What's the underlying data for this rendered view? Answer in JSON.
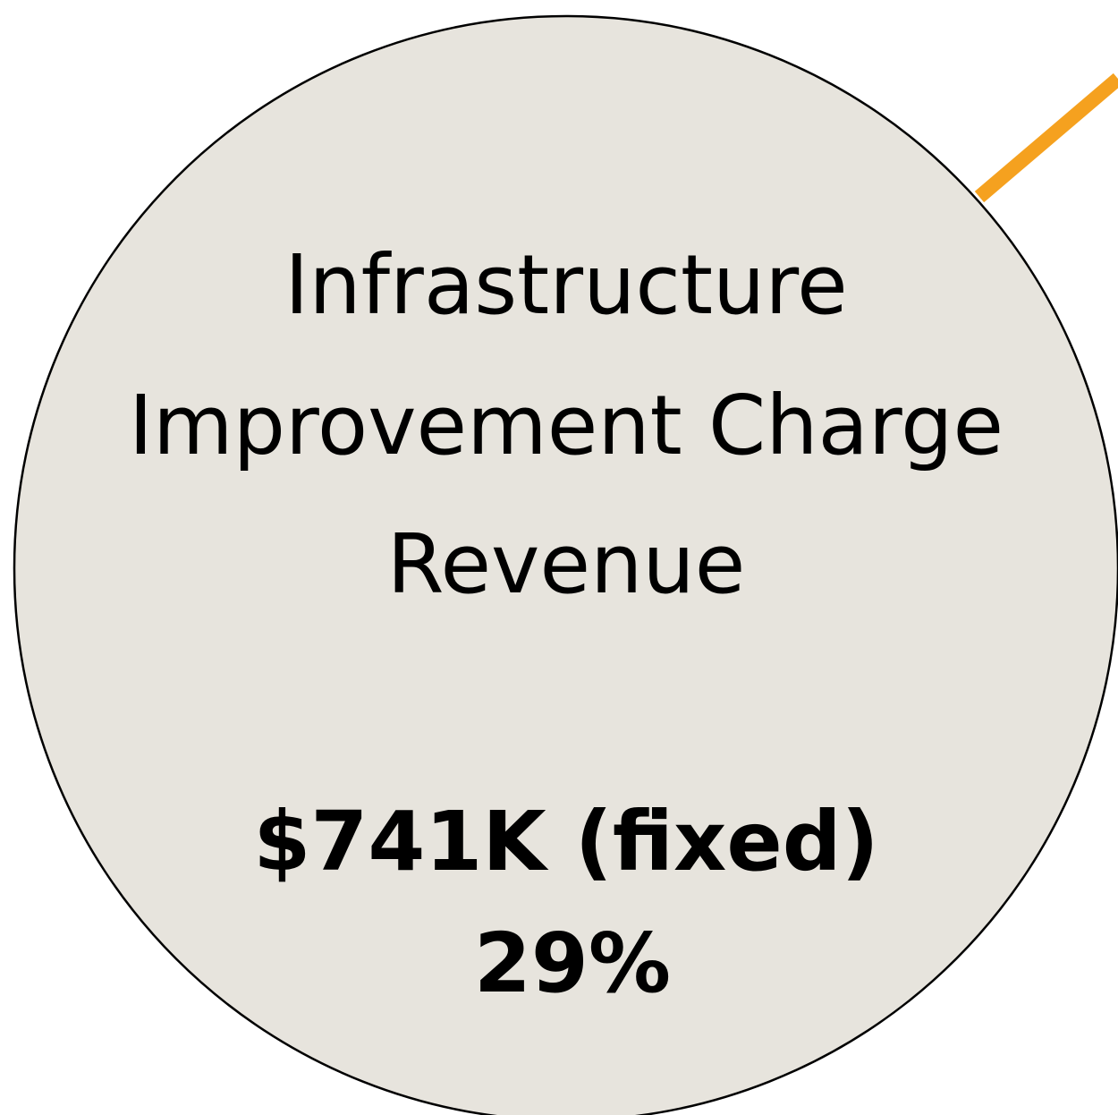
{
  "node": {
    "label_lines": [
      "Infrastructure",
      "Improvement Charge",
      "Revenue"
    ],
    "amount": "$741K (fixed)",
    "share": "29%"
  }
}
